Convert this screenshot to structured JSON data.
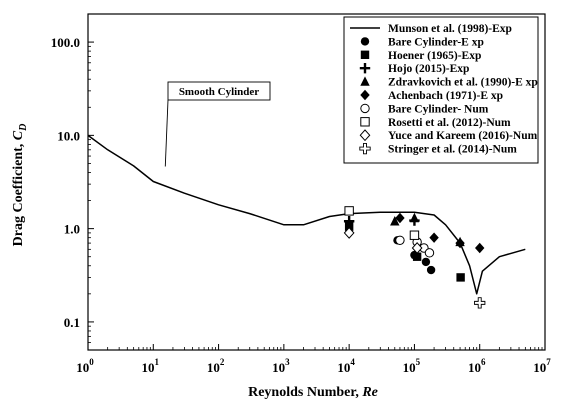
{
  "chart_data": {
    "type": "scatter",
    "xlabel": "Reynolds Number, ",
    "xlabel_italic": "Re",
    "ylabel": "Drag Coefficient, ",
    "ylabel_italic": "C",
    "ylabel_sub": "D",
    "x_scale": "log",
    "y_scale": "log",
    "xlim": [
      1,
      10000000
    ],
    "ylim": [
      0.05,
      200
    ],
    "x_ticks": [
      {
        "value": 1,
        "base": "10",
        "exp": "0"
      },
      {
        "value": 10,
        "base": "10",
        "exp": "1"
      },
      {
        "value": 100,
        "base": "10",
        "exp": "2"
      },
      {
        "value": 1000,
        "base": "10",
        "exp": "3"
      },
      {
        "value": 10000,
        "base": "10",
        "exp": "4"
      },
      {
        "value": 100000,
        "base": "10",
        "exp": "5"
      },
      {
        "value": 1000000,
        "base": "10",
        "exp": "6"
      },
      {
        "value": 10000000,
        "base": "10",
        "exp": "7"
      }
    ],
    "y_ticks": [
      {
        "value": 0.1,
        "label": "0.1"
      },
      {
        "value": 1,
        "label": "1.0"
      },
      {
        "value": 10,
        "label": "10.0"
      },
      {
        "value": 100,
        "label": "100.0"
      }
    ],
    "grid": false,
    "legend_position": "top-right",
    "annotation": {
      "text": "Smooth Cylinder",
      "points_to": [
        10,
        4.2
      ]
    },
    "series": [
      {
        "name": "Munson et al. (1998)-Exp",
        "marker": "line",
        "x": [
          1,
          2,
          5,
          10,
          30,
          100,
          300,
          1000,
          2000,
          5000,
          10000,
          30000,
          100000,
          200000,
          300000,
          500000,
          700000,
          900000,
          1100000,
          2000000,
          5000000
        ],
        "y": [
          10,
          7,
          4.7,
          3.2,
          2.4,
          1.8,
          1.45,
          1.1,
          1.1,
          1.35,
          1.45,
          1.5,
          1.5,
          1.4,
          1.1,
          0.7,
          0.4,
          0.2,
          0.35,
          0.5,
          0.6
        ]
      },
      {
        "name": "Bare Cylinder-E xp",
        "marker": "filled-circle",
        "x": [
          55000,
          100000,
          150000,
          180000
        ],
        "y": [
          0.75,
          0.52,
          0.44,
          0.36
        ]
      },
      {
        "name": "Hoener (1965)-Exp",
        "marker": "filled-square",
        "x": [
          10000,
          110000,
          510000
        ],
        "y": [
          1.05,
          0.5,
          0.3
        ]
      },
      {
        "name": "Hojo (2015)-Exp",
        "marker": "plus",
        "x": [
          10000,
          100000
        ],
        "y": [
          1.2,
          1.22
        ]
      },
      {
        "name": "Zdravkovich et al. (1990)-E xp",
        "marker": "filled-triangle",
        "x": [
          50000,
          100000,
          500000
        ],
        "y": [
          1.2,
          1.3,
          0.72
        ]
      },
      {
        "name": "Achenbach (1971)-E xp",
        "marker": "filled-diamond",
        "x": [
          60000,
          200000,
          500000,
          1000000
        ],
        "y": [
          1.3,
          0.8,
          0.7,
          0.62
        ]
      },
      {
        "name": "Bare Cylinder- Num",
        "marker": "open-circle",
        "x": [
          60000,
          110000,
          140000,
          170000
        ],
        "y": [
          0.75,
          0.72,
          0.62,
          0.55
        ]
      },
      {
        "name": "Rosetti et al. (2012)-Num",
        "marker": "open-square",
        "x": [
          10000,
          100000
        ],
        "y": [
          1.55,
          0.85
        ]
      },
      {
        "name": "Yuce and Kareem (2016)-Num",
        "marker": "open-diamond",
        "x": [
          10000,
          110000
        ],
        "y": [
          0.9,
          0.62
        ]
      },
      {
        "name": "Stringer et al. (2014)-Num",
        "marker": "open-cross",
        "x": [
          1000000
        ],
        "y": [
          0.16
        ]
      }
    ]
  }
}
